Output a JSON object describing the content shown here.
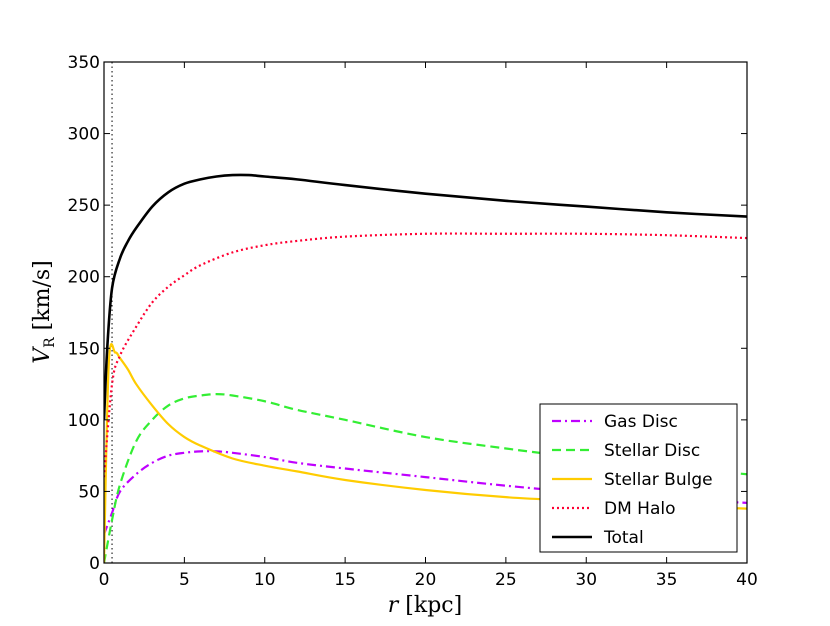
{
  "chart_data": {
    "type": "line",
    "xlabel": "r [kpc]",
    "ylabel": "V_R [km/s]",
    "xlim": [
      0,
      40
    ],
    "ylim": [
      0,
      350
    ],
    "xticks": [
      0,
      5,
      10,
      15,
      20,
      25,
      30,
      35,
      40
    ],
    "yticks": [
      0,
      50,
      100,
      150,
      200,
      250,
      300,
      350
    ],
    "grid": false,
    "legend_position": "bottom-right",
    "vertical_reference_line": {
      "x": 0.5,
      "style": "dotted",
      "color": "#000000"
    },
    "series": [
      {
        "name": "Gas Disc",
        "color": "#bf00ff",
        "dash": "dashdot",
        "x": [
          0,
          0.5,
          1,
          2,
          3,
          4,
          5,
          6,
          7,
          8,
          10,
          12,
          15,
          20,
          25,
          30,
          35,
          40
        ],
        "y": [
          20,
          35,
          50,
          62,
          70,
          75,
          77,
          78,
          78,
          77,
          74,
          70,
          66,
          60,
          54,
          49,
          45,
          42
        ]
      },
      {
        "name": "Stellar Disc",
        "color": "#33ee33",
        "dash": "dashed",
        "x": [
          0,
          0.5,
          1,
          2,
          3,
          4,
          5,
          6,
          7,
          8,
          10,
          12,
          15,
          20,
          25,
          30,
          35,
          40
        ],
        "y": [
          0,
          30,
          55,
          85,
          100,
          110,
          115,
          117,
          118,
          117,
          113,
          107,
          100,
          88,
          80,
          73,
          67,
          62
        ]
      },
      {
        "name": "Stellar Bulge",
        "color": "#ffcc00",
        "dash": "solid",
        "x": [
          0,
          0.3,
          0.7,
          1,
          1.5,
          2,
          3,
          4,
          5,
          6,
          8,
          10,
          12,
          15,
          20,
          25,
          30,
          35,
          40
        ],
        "y": [
          0,
          140,
          147,
          143,
          135,
          125,
          110,
          97,
          88,
          82,
          73,
          68,
          64,
          58,
          51,
          46,
          43,
          40,
          38
        ]
      },
      {
        "name": "DM Halo",
        "color": "#ff0033",
        "dash": "dotted",
        "x": [
          0,
          0.5,
          1,
          2,
          3,
          4,
          5,
          6,
          8,
          10,
          12,
          15,
          20,
          25,
          30,
          35,
          40
        ],
        "y": [
          60,
          125,
          145,
          165,
          182,
          193,
          201,
          208,
          217,
          222,
          225,
          228,
          230,
          230,
          230,
          229,
          227
        ]
      },
      {
        "name": "Total",
        "color": "#000000",
        "dash": "solid",
        "x": [
          0,
          0.2,
          0.5,
          1,
          1.5,
          2,
          3,
          4,
          5,
          6,
          7,
          8,
          9,
          10,
          12,
          15,
          20,
          25,
          30,
          35,
          40
        ],
        "y": [
          100,
          150,
          192,
          213,
          225,
          234,
          249,
          259,
          265,
          268,
          270,
          271,
          271,
          270,
          268,
          264,
          258,
          253,
          249,
          245,
          242
        ]
      }
    ]
  },
  "labels": {
    "ylabel_main": "V",
    "ylabel_sub": "R",
    "ylabel_unit": " [km/s]",
    "xlabel_main": "r",
    "xlabel_unit": " [kpc]"
  }
}
